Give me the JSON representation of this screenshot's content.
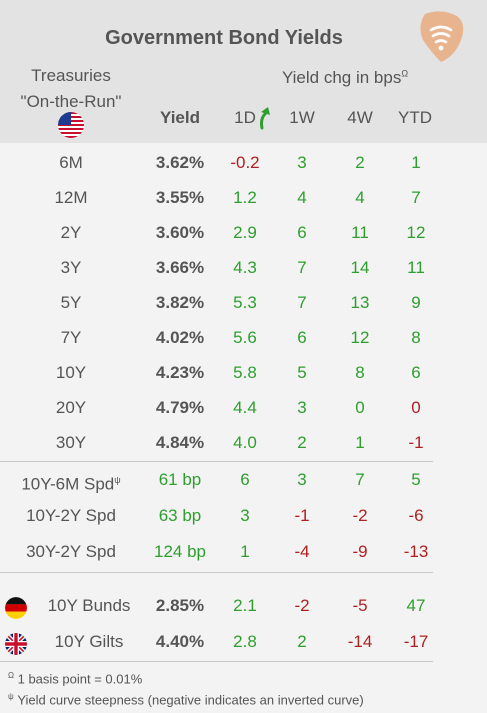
{
  "title": "Government Bond Yields",
  "header": {
    "treasuries_line1": "Treasuries",
    "treasuries_line2": "\"On-the-Run\"",
    "yield_chg": "Yield chg in bps",
    "yield_chg_sup": "Ω",
    "col_yield": "Yield",
    "col_1d": "1D",
    "col_1w": "1W",
    "col_4w": "4W",
    "col_ytd": "YTD"
  },
  "treasury_rows": [
    {
      "label": "6M",
      "yield": "3.62%",
      "d1": "-0.2",
      "w1": "3",
      "w4": "2",
      "ytd": "1"
    },
    {
      "label": "12M",
      "yield": "3.55%",
      "d1": "1.2",
      "w1": "4",
      "w4": "4",
      "ytd": "7"
    },
    {
      "label": "2Y",
      "yield": "3.60%",
      "d1": "2.9",
      "w1": "6",
      "w4": "11",
      "ytd": "12"
    },
    {
      "label": "3Y",
      "yield": "3.66%",
      "d1": "4.3",
      "w1": "7",
      "w4": "14",
      "ytd": "11"
    },
    {
      "label": "5Y",
      "yield": "3.82%",
      "d1": "5.3",
      "w1": "7",
      "w4": "13",
      "ytd": "9"
    },
    {
      "label": "7Y",
      "yield": "4.02%",
      "d1": "5.6",
      "w1": "6",
      "w4": "12",
      "ytd": "8"
    },
    {
      "label": "10Y",
      "yield": "4.23%",
      "d1": "5.8",
      "w1": "5",
      "w4": "8",
      "ytd": "6"
    },
    {
      "label": "20Y",
      "yield": "4.79%",
      "d1": "4.4",
      "w1": "3",
      "w4": "0",
      "ytd": "0"
    },
    {
      "label": "30Y",
      "yield": "4.84%",
      "d1": "4.0",
      "w1": "2",
      "w4": "1",
      "ytd": "-1"
    }
  ],
  "spread_rows": [
    {
      "label": "10Y-6M Spd",
      "sup": "ψ",
      "value": "61 bp",
      "d1": "6",
      "w1": "3",
      "w4": "7",
      "ytd": "5"
    },
    {
      "label": "10Y-2Y Spd",
      "sup": "",
      "value": "63 bp",
      "d1": "3",
      "w1": "-1",
      "w4": "-2",
      "ytd": "-6"
    },
    {
      "label": "30Y-2Y Spd",
      "sup": "",
      "value": "124 bp",
      "d1": "1",
      "w1": "-4",
      "w4": "-9",
      "ytd": "-13"
    }
  ],
  "global_rows": [
    {
      "label": "10Y Bunds",
      "yield": "2.85%",
      "d1": "2.1",
      "w1": "-2",
      "w4": "-5",
      "ytd": "47"
    },
    {
      "label": "10Y Gilts",
      "yield": "4.40%",
      "d1": "2.8",
      "w1": "2",
      "w4": "-14",
      "ytd": "-17"
    }
  ],
  "footnotes": {
    "f1_sym": "Ω",
    "f1_text": "1 basis point = 0.01%",
    "f2_sym": "ψ",
    "f2_text": "Yield curve steepness (negative indicates an inverted curve)"
  },
  "colors": {
    "positive": "#2e9e2e",
    "negative": "#b02020",
    "header_bg": "#e3e3e3",
    "logo": "#e8b48e"
  }
}
